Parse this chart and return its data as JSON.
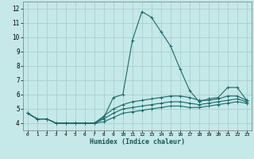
{
  "title": "",
  "xlabel": "Humidex (Indice chaleur)",
  "ylabel": "",
  "background_color": "#c5e8e8",
  "grid_color": "#aacfcf",
  "line_color": "#1a6b6b",
  "xlim": [
    -0.5,
    23.5
  ],
  "ylim": [
    3.5,
    12.5
  ],
  "xticks": [
    0,
    1,
    2,
    3,
    4,
    5,
    6,
    7,
    8,
    9,
    10,
    11,
    12,
    13,
    14,
    15,
    16,
    17,
    18,
    19,
    20,
    21,
    22,
    23
  ],
  "yticks": [
    4,
    5,
    6,
    7,
    8,
    9,
    10,
    11,
    12
  ],
  "series": [
    [
      4.7,
      4.3,
      4.3,
      4.0,
      4.0,
      4.0,
      4.0,
      4.0,
      4.4,
      5.8,
      6.0,
      9.8,
      11.8,
      11.4,
      10.4,
      9.4,
      7.8,
      6.3,
      5.5,
      5.7,
      5.8,
      6.5,
      6.5,
      5.6
    ],
    [
      4.7,
      4.3,
      4.3,
      4.0,
      4.0,
      4.0,
      4.0,
      4.0,
      4.5,
      5.0,
      5.3,
      5.5,
      5.6,
      5.7,
      5.8,
      5.9,
      5.9,
      5.8,
      5.6,
      5.6,
      5.7,
      5.9,
      5.9,
      5.6
    ],
    [
      4.7,
      4.3,
      4.3,
      4.0,
      4.0,
      4.0,
      4.0,
      4.0,
      4.3,
      4.7,
      5.0,
      5.1,
      5.2,
      5.3,
      5.4,
      5.5,
      5.5,
      5.4,
      5.3,
      5.4,
      5.5,
      5.6,
      5.7,
      5.5
    ],
    [
      4.7,
      4.3,
      4.3,
      4.0,
      4.0,
      4.0,
      4.0,
      4.0,
      4.1,
      4.4,
      4.7,
      4.8,
      4.9,
      5.0,
      5.1,
      5.2,
      5.2,
      5.1,
      5.1,
      5.2,
      5.3,
      5.4,
      5.5,
      5.4
    ]
  ],
  "xlabel_fontsize": 6.0,
  "tick_fontsize_x": 4.5,
  "tick_fontsize_y": 5.5
}
